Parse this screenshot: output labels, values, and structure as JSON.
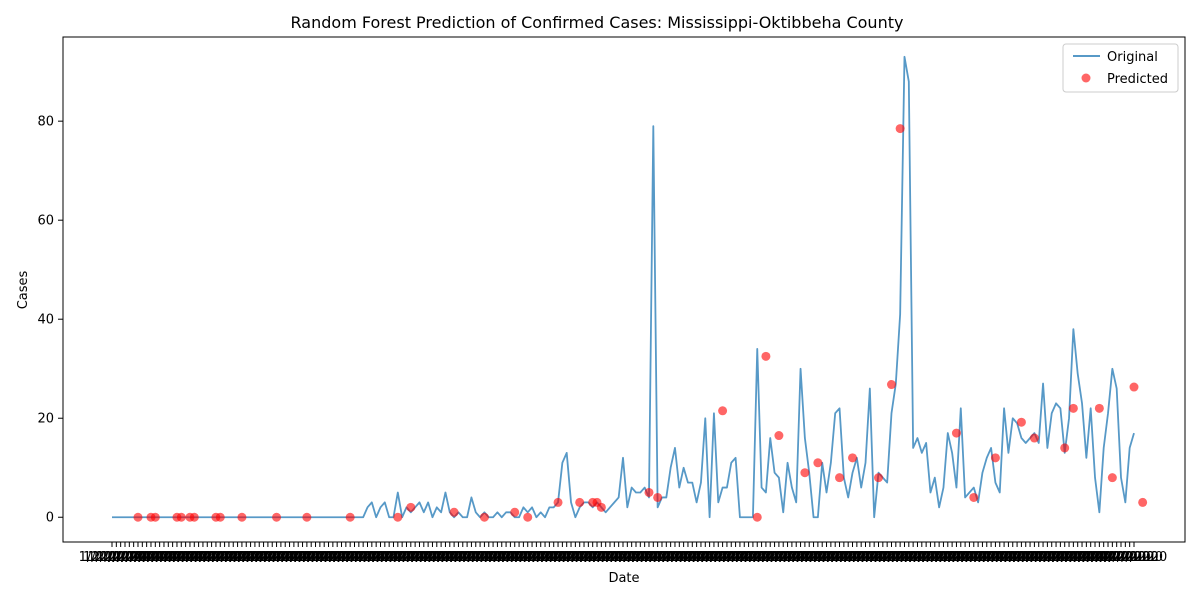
{
  "chart_data": {
    "type": "line",
    "title": "Random Forest Prediction of Confirmed Cases: Mississippi-Oktibbeha County",
    "xlabel": "Date",
    "ylabel": "Cases",
    "ylim": [
      -5,
      97
    ],
    "yticks": [
      0,
      20,
      40,
      60,
      80
    ],
    "xtick_text": "1/22/2020",
    "legend_position": "top-right",
    "grid": false,
    "colors": {
      "original": "#1f77b4",
      "predicted": "#ff0000"
    },
    "series": [
      {
        "name": "Original",
        "kind": "line",
        "values": [
          0,
          0,
          0,
          0,
          0,
          0,
          0,
          0,
          0,
          0,
          0,
          0,
          0,
          0,
          0,
          0,
          0,
          0,
          0,
          0,
          0,
          0,
          0,
          0,
          0,
          0,
          0,
          0,
          0,
          0,
          0,
          0,
          0,
          0,
          0,
          0,
          0,
          0,
          0,
          0,
          0,
          0,
          0,
          0,
          0,
          0,
          0,
          0,
          0,
          0,
          0,
          0,
          0,
          0,
          0,
          0,
          0,
          0,
          0,
          2,
          3,
          0,
          2,
          3,
          0,
          0,
          5,
          0,
          2,
          1,
          2,
          3,
          1,
          3,
          0,
          2,
          1,
          5,
          1,
          0,
          1,
          0,
          0,
          4,
          1,
          0,
          1,
          0,
          0,
          1,
          0,
          1,
          1,
          0,
          0,
          2,
          1,
          2,
          0,
          1,
          0,
          2,
          2,
          3,
          11,
          13,
          3,
          0,
          2,
          3,
          3,
          2,
          3,
          2,
          1,
          2,
          3,
          4,
          12,
          2,
          6,
          5,
          5,
          6,
          4,
          79,
          2,
          4,
          4,
          10,
          14,
          6,
          10,
          7,
          7,
          3,
          7,
          20,
          0,
          21,
          3,
          6,
          6,
          11,
          12,
          0,
          0,
          0,
          0,
          34,
          6,
          5,
          16,
          9,
          8,
          1,
          11,
          6,
          3,
          30,
          16,
          9,
          0,
          0,
          11,
          5,
          11,
          21,
          22,
          8,
          4,
          9,
          12,
          6,
          11,
          26,
          0,
          9,
          8,
          7,
          21,
          27,
          41,
          93,
          88,
          14,
          16,
          13,
          15,
          5,
          8,
          2,
          6,
          17,
          13,
          6,
          22,
          4,
          5,
          6,
          3,
          9,
          12,
          14,
          7,
          5,
          22,
          13,
          20,
          19,
          16,
          15,
          16,
          17,
          15,
          27,
          14,
          21,
          23,
          22,
          13,
          20,
          38,
          29,
          23,
          12,
          22,
          8,
          1,
          14,
          21,
          30,
          26,
          8,
          3,
          14,
          17
        ]
      },
      {
        "name": "Predicted",
        "kind": "scatter",
        "points": [
          [
            6,
            0
          ],
          [
            9,
            0
          ],
          [
            10,
            0
          ],
          [
            15,
            0
          ],
          [
            16,
            0
          ],
          [
            18,
            0
          ],
          [
            19,
            0
          ],
          [
            24,
            0
          ],
          [
            25,
            0
          ],
          [
            30,
            0
          ],
          [
            38,
            0
          ],
          [
            45,
            0
          ],
          [
            55,
            0
          ],
          [
            66,
            0
          ],
          [
            69,
            2
          ],
          [
            79,
            1
          ],
          [
            86,
            0
          ],
          [
            93,
            1
          ],
          [
            96,
            0
          ],
          [
            103,
            3
          ],
          [
            108,
            3
          ],
          [
            111,
            3
          ],
          [
            112,
            3
          ],
          [
            113,
            2
          ],
          [
            124,
            5
          ],
          [
            126,
            4
          ],
          [
            141,
            21.5
          ],
          [
            149,
            0
          ],
          [
            151,
            32.5
          ],
          [
            154,
            16.5
          ],
          [
            160,
            9
          ],
          [
            163,
            11
          ],
          [
            168,
            8
          ],
          [
            171,
            12
          ],
          [
            177,
            8
          ],
          [
            180,
            26.8
          ],
          [
            182,
            78.5
          ],
          [
            195,
            17
          ],
          [
            199,
            4
          ],
          [
            204,
            12
          ],
          [
            210,
            19.2
          ],
          [
            213,
            16
          ],
          [
            220,
            14
          ],
          [
            222,
            22
          ],
          [
            228,
            22
          ],
          [
            231,
            8
          ],
          [
            236,
            26.3
          ],
          [
            238,
            3
          ]
        ]
      }
    ]
  }
}
